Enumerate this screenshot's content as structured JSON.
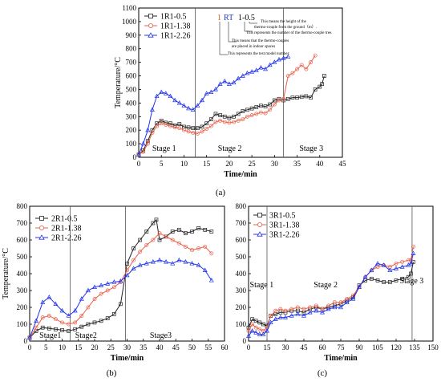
{
  "colors": {
    "black": "#222222",
    "red": "#e8604a",
    "blue": "#2233ee",
    "grid": "#000000"
  },
  "chart_data": [
    {
      "id": "a",
      "type": "line",
      "caption": "(a)",
      "xlabel": "Time/min",
      "ylabel": "Temperature/°C",
      "xlim": [
        0,
        45
      ],
      "ylim": [
        0,
        1100
      ],
      "xticks": [
        0,
        5,
        10,
        15,
        20,
        25,
        30,
        35,
        40,
        45
      ],
      "yticks": [
        0,
        100,
        200,
        300,
        400,
        500,
        600,
        700,
        800,
        900,
        1000,
        1100
      ],
      "stages": [
        {
          "label": "Stage 1",
          "x": 3
        },
        {
          "label": "Stage 2",
          "x": 17.5
        },
        {
          "label": "Stage 3",
          "x": 35.5
        }
      ],
      "stage_lines": [
        12.5,
        32
      ],
      "legend_position": "top-left",
      "annotation": {
        "parts": [
          "1",
          "RT",
          "1-0.5"
        ],
        "notes": [
          "This means the height of the",
          "thermo-couple  from the ground（m）.",
          "This represents the number of the thermo-couple tree.",
          "This means that the thermo-couples",
          "are placed in indoor spaces",
          "This represents the test model number."
        ]
      },
      "series": [
        {
          "name": "1R1-0.5",
          "color": "black",
          "marker": "square",
          "x": [
            0,
            1,
            2,
            3,
            4,
            5,
            6,
            7,
            8,
            9,
            10,
            11,
            12,
            13,
            14,
            15,
            16,
            17,
            18,
            19,
            20,
            21,
            22,
            23,
            24,
            25,
            26,
            27,
            28,
            29,
            30,
            31,
            32,
            33,
            34,
            35,
            36,
            37,
            38,
            39,
            40,
            40.5,
            41
          ],
          "y": [
            20,
            50,
            120,
            200,
            250,
            270,
            255,
            250,
            235,
            245,
            225,
            220,
            215,
            215,
            225,
            250,
            280,
            320,
            310,
            300,
            290,
            300,
            320,
            340,
            350,
            360,
            370,
            380,
            375,
            390,
            420,
            430,
            420,
            430,
            440,
            440,
            445,
            450,
            440,
            500,
            520,
            540,
            600
          ]
        },
        {
          "name": "1R1-1.38",
          "color": "red",
          "marker": "circle",
          "x": [
            0,
            1,
            2,
            3,
            4,
            5,
            6,
            7,
            8,
            9,
            10,
            11,
            12,
            13,
            14,
            15,
            16,
            17,
            18,
            19,
            20,
            21,
            22,
            23,
            24,
            25,
            26,
            27,
            28,
            29,
            30,
            31,
            32,
            33,
            34,
            35,
            36,
            37,
            38,
            39
          ],
          "y": [
            20,
            40,
            100,
            180,
            230,
            250,
            240,
            230,
            220,
            215,
            200,
            190,
            180,
            175,
            190,
            210,
            230,
            260,
            270,
            260,
            255,
            260,
            270,
            280,
            300,
            310,
            320,
            330,
            325,
            350,
            390,
            420,
            430,
            600,
            620,
            650,
            680,
            650,
            700,
            750
          ]
        },
        {
          "name": "1R1-2.26",
          "color": "blue",
          "marker": "triangle",
          "x": [
            0,
            1,
            2,
            3,
            4,
            5,
            6,
            7,
            8,
            9,
            10,
            11,
            12,
            13,
            14,
            15,
            16,
            17,
            18,
            19,
            20,
            21,
            22,
            23,
            24,
            25,
            26,
            27,
            28,
            29,
            30,
            31,
            32,
            33
          ],
          "y": [
            20,
            100,
            200,
            350,
            450,
            480,
            470,
            450,
            420,
            400,
            380,
            360,
            350,
            380,
            420,
            470,
            480,
            500,
            540,
            560,
            540,
            550,
            580,
            600,
            620,
            630,
            640,
            660,
            650,
            680,
            700,
            720,
            730,
            740
          ]
        }
      ]
    },
    {
      "id": "b",
      "type": "line",
      "caption": "(b)",
      "xlabel": "Time/min",
      "ylabel": "Temperature/°C",
      "xlim": [
        0,
        60
      ],
      "ylim": [
        0,
        800
      ],
      "xticks": [
        0,
        5,
        10,
        15,
        20,
        25,
        30,
        35,
        40,
        45,
        50,
        55,
        60
      ],
      "yticks": [
        0,
        100,
        200,
        300,
        400,
        500,
        600,
        700,
        800
      ],
      "stages": [
        {
          "label": "Stage1",
          "x": 3
        },
        {
          "label": "Stage2",
          "x": 14
        },
        {
          "label": "Stage3",
          "x": 37
        }
      ],
      "stage_lines": [
        12.5,
        29.5
      ],
      "legend_position": "top-left",
      "series": [
        {
          "name": "2R1-0.5",
          "color": "black",
          "marker": "square",
          "x": [
            0,
            2,
            4,
            6,
            8,
            10,
            12,
            14,
            16,
            18,
            20,
            22,
            24,
            26,
            28,
            30,
            32,
            34,
            36,
            38,
            39,
            40,
            42,
            44,
            46,
            48,
            50,
            52,
            54,
            56
          ],
          "y": [
            20,
            60,
            80,
            75,
            70,
            65,
            60,
            70,
            85,
            100,
            110,
            120,
            135,
            160,
            220,
            460,
            550,
            600,
            650,
            700,
            720,
            600,
            620,
            650,
            660,
            640,
            650,
            670,
            660,
            650
          ]
        },
        {
          "name": "2R1-1.38",
          "color": "red",
          "marker": "circle",
          "x": [
            0,
            2,
            4,
            6,
            8,
            10,
            12,
            14,
            16,
            18,
            20,
            22,
            24,
            26,
            28,
            30,
            32,
            34,
            36,
            38,
            40,
            42,
            44,
            46,
            48,
            50,
            52,
            54,
            56
          ],
          "y": [
            20,
            80,
            140,
            150,
            130,
            110,
            100,
            110,
            150,
            200,
            250,
            280,
            300,
            320,
            350,
            420,
            480,
            530,
            570,
            600,
            640,
            620,
            600,
            580,
            560,
            540,
            550,
            560,
            520
          ]
        },
        {
          "name": "2R1-2.26",
          "color": "blue",
          "marker": "triangle",
          "x": [
            0,
            2,
            4,
            6,
            8,
            10,
            12,
            14,
            16,
            18,
            20,
            22,
            24,
            26,
            28,
            30,
            32,
            34,
            36,
            38,
            40,
            42,
            44,
            46,
            48,
            50,
            52,
            54,
            56
          ],
          "y": [
            20,
            120,
            230,
            260,
            220,
            180,
            150,
            180,
            250,
            300,
            320,
            330,
            340,
            350,
            355,
            390,
            430,
            450,
            460,
            470,
            480,
            470,
            460,
            480,
            470,
            460,
            450,
            420,
            360
          ]
        }
      ]
    },
    {
      "id": "c",
      "type": "line",
      "caption": "(c)",
      "xlabel": "Time/min",
      "ylabel": "",
      "xlim": [
        0,
        150
      ],
      "ylim": [
        0,
        800
      ],
      "xticks": [
        0,
        15,
        30,
        45,
        60,
        75,
        90,
        105,
        120,
        135,
        150
      ],
      "yticks": [
        0,
        100,
        200,
        300,
        400,
        500,
        600,
        700,
        800
      ],
      "stages": [
        {
          "label": "Stage 1",
          "x": 1
        },
        {
          "label": "Stage 2",
          "x": 53
        },
        {
          "label": "Stage 3",
          "x": 123
        }
      ],
      "stage_lines": [
        15,
        133
      ],
      "legend_position": "top-left",
      "series": [
        {
          "name": "3R1-0.5",
          "color": "black",
          "marker": "square",
          "x": [
            0,
            3,
            6,
            9,
            12,
            15,
            18,
            22,
            26,
            30,
            35,
            40,
            45,
            50,
            55,
            60,
            65,
            70,
            75,
            80,
            85,
            90,
            95,
            100,
            105,
            110,
            115,
            120,
            125,
            130,
            132,
            134
          ],
          "y": [
            80,
            130,
            120,
            110,
            100,
            90,
            150,
            160,
            170,
            170,
            180,
            180,
            170,
            190,
            200,
            190,
            200,
            210,
            220,
            240,
            260,
            330,
            360,
            370,
            360,
            350,
            350,
            360,
            370,
            380,
            400,
            470
          ]
        },
        {
          "name": "3R1-1.38",
          "color": "red",
          "marker": "circle",
          "x": [
            0,
            3,
            6,
            9,
            12,
            15,
            18,
            22,
            26,
            30,
            35,
            40,
            45,
            50,
            55,
            60,
            65,
            70,
            75,
            80,
            85,
            90,
            95,
            100,
            105,
            110,
            115,
            120,
            125,
            130,
            132,
            134
          ],
          "y": [
            60,
            100,
            80,
            70,
            60,
            80,
            150,
            180,
            190,
            180,
            190,
            200,
            190,
            200,
            210,
            190,
            210,
            230,
            230,
            250,
            270,
            320,
            380,
            420,
            440,
            450,
            440,
            460,
            470,
            480,
            480,
            560
          ]
        },
        {
          "name": "3R1-2.26",
          "color": "blue",
          "marker": "triangle",
          "x": [
            0,
            3,
            6,
            9,
            12,
            15,
            18,
            22,
            26,
            30,
            35,
            40,
            45,
            50,
            55,
            60,
            65,
            70,
            75,
            80,
            85,
            90,
            95,
            100,
            105,
            110,
            115,
            120,
            125,
            130,
            132,
            134
          ],
          "y": [
            30,
            60,
            50,
            40,
            40,
            60,
            110,
            130,
            140,
            140,
            150,
            160,
            150,
            170,
            180,
            170,
            190,
            200,
            200,
            230,
            250,
            320,
            380,
            420,
            460,
            450,
            420,
            430,
            440,
            450,
            460,
            520
          ]
        }
      ]
    }
  ]
}
